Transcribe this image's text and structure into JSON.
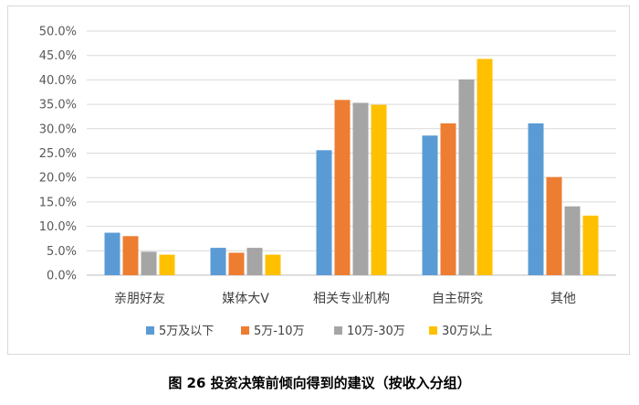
{
  "caption": "图 26  投资决策前倾向得到的建议（按收入分组）",
  "chart_data": {
    "type": "bar",
    "categories": [
      "亲朋好友",
      "媒体大V",
      "相关专业机构",
      "自主研究",
      "其他"
    ],
    "series": [
      {
        "name": "5万及以下",
        "color": "#5B9BD5",
        "values": [
          8.7,
          5.6,
          25.6,
          28.6,
          31.1
        ]
      },
      {
        "name": "5万-10万",
        "color": "#ED7D31",
        "values": [
          8.0,
          4.6,
          35.9,
          31.1,
          20.1
        ]
      },
      {
        "name": "10万-30万",
        "color": "#A5A5A5",
        "values": [
          4.8,
          5.6,
          35.3,
          40.1,
          14.1
        ]
      },
      {
        "name": "30万以上",
        "color": "#FFC000",
        "values": [
          4.2,
          4.2,
          34.9,
          44.3,
          12.2
        ]
      }
    ],
    "yticks": [
      "0.0%",
      "5.0%",
      "10.0%",
      "15.0%",
      "20.0%",
      "25.0%",
      "30.0%",
      "35.0%",
      "40.0%",
      "45.0%",
      "50.0%"
    ],
    "ylim": [
      0,
      50
    ],
    "grid": true,
    "legend_position": "bottom"
  }
}
